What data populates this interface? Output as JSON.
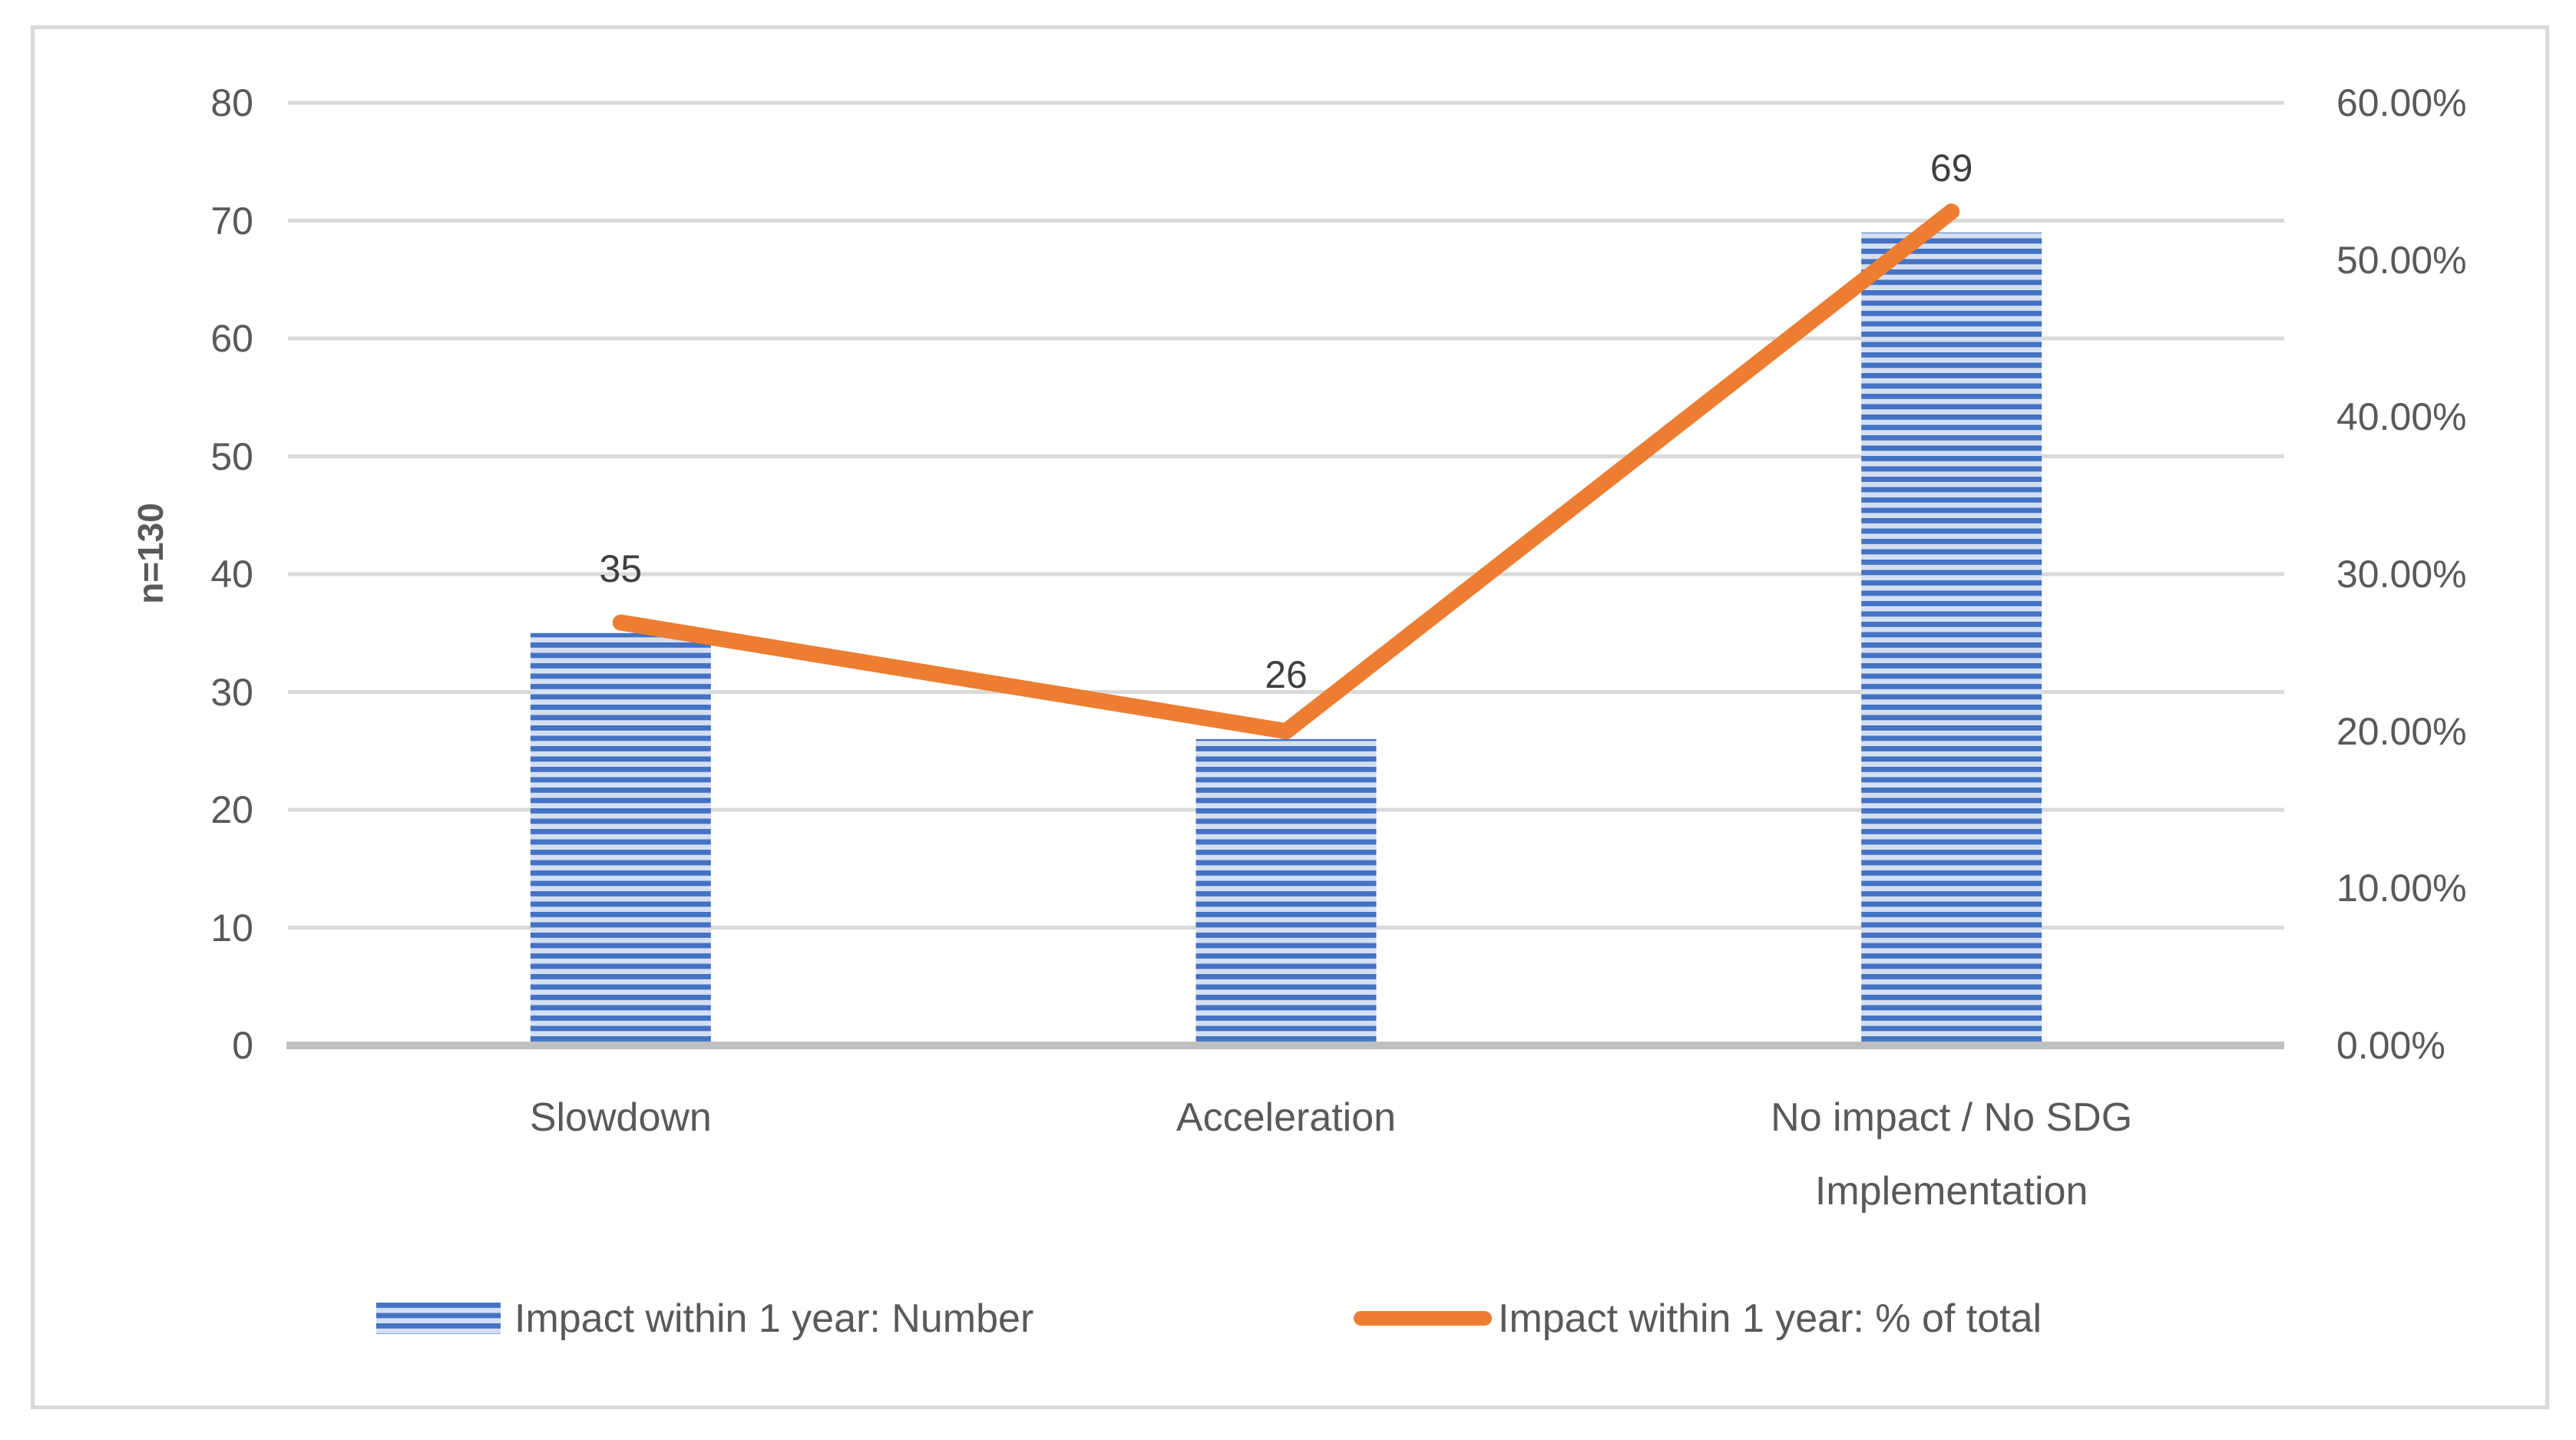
{
  "chart_data": {
    "type": "combo-bar-line",
    "title": "",
    "categories": [
      "Slowdown",
      "Acceleration",
      "No impact / No SDG Implementation"
    ],
    "category_label_lines": [
      [
        "Slowdown"
      ],
      [
        "Acceleration"
      ],
      [
        "No impact / No SDG",
        "Implementation"
      ]
    ],
    "series": [
      {
        "name": "Impact within 1 year: Number",
        "type": "bar",
        "axis": "left",
        "values": [
          35,
          26,
          69
        ],
        "data_labels": [
          "35",
          "26",
          "69"
        ],
        "color": "#4472C4",
        "stripe_light_color": "#D5DFF2"
      },
      {
        "name": "Impact within 1 year: % of total",
        "type": "line",
        "axis": "right",
        "values_pct": [
          26.92,
          20.0,
          53.08
        ],
        "color": "#ED7D31"
      }
    ],
    "left_axis": {
      "title": "n=130",
      "min": 0,
      "max": 80,
      "step": 10,
      "ticks": [
        "0",
        "10",
        "20",
        "30",
        "40",
        "50",
        "60",
        "70",
        "80"
      ]
    },
    "right_axis": {
      "min": 0,
      "max": 60,
      "step": 10,
      "ticks": [
        "0.00%",
        "10.00%",
        "20.00%",
        "30.00%",
        "40.00%",
        "50.00%",
        "60.00%"
      ]
    },
    "legend": [
      {
        "label": "Impact within 1 year: Number",
        "swatch": "striped-bar"
      },
      {
        "label": "Impact within 1 year: % of total",
        "swatch": "line"
      }
    ],
    "grid": true,
    "legend_position": "bottom",
    "colors": {
      "grid": "#D9D9D9",
      "axis_line": "#BFBFBF",
      "tick_text": "#595959",
      "data_label_text": "#3f3f3f",
      "frame_border": "#D9D9D9"
    }
  }
}
